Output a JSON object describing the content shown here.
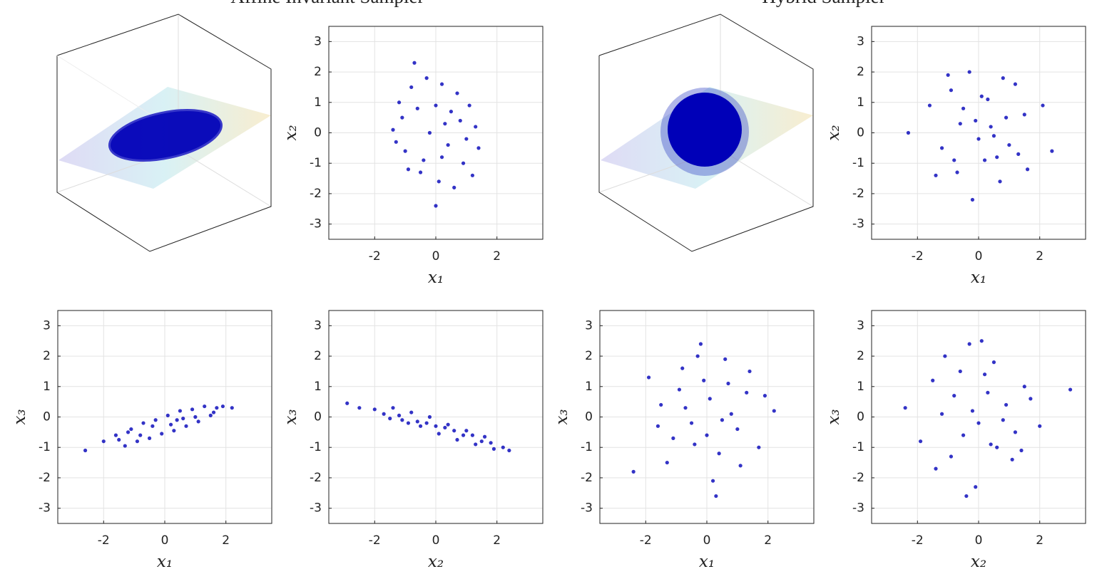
{
  "figure": {
    "titles": [
      "Affine Invariant Sampler",
      "Hybrid Sampler"
    ]
  },
  "chart_data": [
    {
      "type": "scatter",
      "xlabel": "x₁",
      "ylabel": "x₂",
      "color": "#0000b8",
      "grid": true,
      "xlim": [
        -3.5,
        3.5
      ],
      "ylim": [
        -3.5,
        3.5
      ],
      "xticks": [
        -2,
        0,
        2
      ],
      "yticks": [
        -3,
        -2,
        -1,
        0,
        1,
        2,
        3
      ],
      "x": [
        -1.2,
        -0.8,
        -0.3,
        0.2,
        0.7,
        1.1,
        1.3,
        -1.4,
        -0.6,
        0.0,
        0.5,
        1.0,
        -1.0,
        -0.2,
        0.4,
        0.9,
        -0.5,
        0.1,
        0.6,
        -0.9,
        -1.1,
        1.4,
        0.3,
        -0.4,
        0.8,
        -1.3,
        0.0,
        1.2,
        -0.7,
        0.2
      ],
      "y": [
        1.0,
        1.5,
        1.8,
        1.6,
        1.3,
        0.9,
        0.2,
        0.1,
        0.8,
        0.9,
        0.7,
        -0.2,
        -0.6,
        0.0,
        -0.4,
        -1.0,
        -1.3,
        -1.6,
        -1.8,
        -1.2,
        0.5,
        -0.5,
        0.3,
        -0.9,
        0.4,
        -0.3,
        -2.4,
        -1.4,
        2.3,
        -0.8
      ]
    },
    {
      "type": "scatter",
      "xlabel": "x₁",
      "ylabel": "x₂",
      "color": "#0000b8",
      "grid": true,
      "xlim": [
        -3.5,
        3.5
      ],
      "ylim": [
        -3.5,
        3.5
      ],
      "xticks": [
        -2,
        0,
        2
      ],
      "yticks": [
        -3,
        -2,
        -1,
        0,
        1,
        2,
        3
      ],
      "x": [
        -2.3,
        -1.6,
        -1.2,
        -0.9,
        -0.6,
        -0.3,
        0.0,
        0.3,
        0.6,
        0.9,
        1.2,
        1.6,
        2.1,
        -1.4,
        -0.8,
        -0.2,
        0.4,
        1.0,
        1.5,
        -1.0,
        -0.5,
        0.1,
        0.7,
        1.3,
        -0.7,
        0.2,
        0.8,
        -0.1,
        0.5,
        2.4
      ],
      "y": [
        0.0,
        0.9,
        -0.5,
        1.4,
        0.3,
        2.0,
        -0.2,
        1.1,
        -0.8,
        0.5,
        1.6,
        -1.2,
        0.9,
        -1.4,
        -0.9,
        -2.2,
        0.2,
        -0.4,
        0.6,
        1.9,
        0.8,
        1.2,
        -1.6,
        -0.7,
        -1.3,
        -0.9,
        1.8,
        0.4,
        -0.1,
        -0.6
      ]
    },
    {
      "type": "scatter",
      "xlabel": "x₁",
      "ylabel": "x₃",
      "color": "#0000b8",
      "grid": true,
      "xlim": [
        -3.5,
        3.5
      ],
      "ylim": [
        -3.5,
        3.5
      ],
      "xticks": [
        -2,
        0,
        2
      ],
      "yticks": [
        -3,
        -2,
        -1,
        0,
        1,
        2,
        3
      ],
      "x": [
        -2.6,
        -2.0,
        -1.6,
        -1.3,
        -1.1,
        -0.9,
        -0.7,
        -0.5,
        -0.3,
        -0.1,
        0.1,
        0.3,
        0.5,
        0.7,
        0.9,
        1.1,
        1.3,
        1.5,
        1.7,
        1.9,
        2.2,
        -1.2,
        -0.4,
        0.4,
        1.0,
        -0.8,
        0.2,
        1.6,
        -1.5,
        0.6
      ],
      "y": [
        -1.1,
        -0.8,
        -0.6,
        -0.95,
        -0.4,
        -0.8,
        -0.2,
        -0.7,
        -0.1,
        -0.55,
        0.05,
        -0.45,
        0.2,
        -0.3,
        0.25,
        -0.15,
        0.35,
        0.05,
        0.3,
        0.35,
        0.3,
        -0.5,
        -0.3,
        -0.1,
        0.0,
        -0.6,
        -0.25,
        0.15,
        -0.75,
        -0.05
      ]
    },
    {
      "type": "scatter",
      "xlabel": "x₂",
      "ylabel": "x₃",
      "color": "#0000b8",
      "grid": true,
      "xlim": [
        -3.5,
        3.5
      ],
      "ylim": [
        -3.5,
        3.5
      ],
      "xticks": [
        -2,
        0,
        2
      ],
      "yticks": [
        -3,
        -2,
        -1,
        0,
        1,
        2,
        3
      ],
      "x": [
        -2.9,
        -2.5,
        -2.0,
        -1.7,
        -1.4,
        -1.1,
        -0.8,
        -0.5,
        -0.2,
        0.1,
        0.4,
        0.7,
        1.0,
        1.3,
        1.6,
        1.9,
        2.4,
        -1.5,
        -0.9,
        -0.3,
        0.3,
        0.9,
        1.5,
        -1.2,
        -0.6,
        0.0,
        0.6,
        1.2,
        1.8,
        2.2
      ],
      "y": [
        0.45,
        0.3,
        0.25,
        0.1,
        0.3,
        -0.1,
        0.15,
        -0.3,
        0.0,
        -0.55,
        -0.25,
        -0.75,
        -0.45,
        -0.9,
        -0.65,
        -1.05,
        -1.1,
        -0.05,
        -0.2,
        -0.2,
        -0.35,
        -0.6,
        -0.8,
        0.05,
        -0.15,
        -0.3,
        -0.45,
        -0.6,
        -0.85,
        -1.0
      ]
    },
    {
      "type": "scatter",
      "xlabel": "x₁",
      "ylabel": "x₃",
      "color": "#0000b8",
      "grid": true,
      "xlim": [
        -3.5,
        3.5
      ],
      "ylim": [
        -3.5,
        3.5
      ],
      "xticks": [
        -2,
        0,
        2
      ],
      "yticks": [
        -3,
        -2,
        -1,
        0,
        1,
        2,
        3
      ],
      "x": [
        -2.4,
        -1.9,
        -1.5,
        -1.1,
        -0.8,
        -0.5,
        -0.2,
        0.1,
        0.4,
        0.7,
        1.0,
        1.3,
        1.7,
        2.2,
        -1.3,
        -0.9,
        -0.4,
        0.2,
        0.8,
        1.4,
        -0.7,
        0.0,
        0.6,
        1.1,
        -0.1,
        0.5,
        -1.6,
        0.3,
        1.9,
        -0.3
      ],
      "y": [
        -1.8,
        1.3,
        0.4,
        -0.7,
        1.6,
        -0.2,
        2.4,
        0.6,
        -1.2,
        1.1,
        -0.4,
        0.8,
        -1.0,
        0.2,
        -1.5,
        0.9,
        -0.9,
        -2.1,
        0.1,
        1.5,
        0.3,
        -0.6,
        1.9,
        -1.6,
        1.2,
        -0.1,
        -0.3,
        -2.6,
        0.7,
        2.0
      ]
    },
    {
      "type": "scatter",
      "xlabel": "x₂",
      "ylabel": "x₃",
      "color": "#0000b8",
      "grid": true,
      "xlim": [
        -3.5,
        3.5
      ],
      "ylim": [
        -3.5,
        3.5
      ],
      "xticks": [
        -2,
        0,
        2
      ],
      "yticks": [
        -3,
        -2,
        -1,
        0,
        1,
        2,
        3
      ],
      "x": [
        -2.4,
        -1.9,
        -1.5,
        -1.2,
        -0.9,
        -0.6,
        -0.3,
        0.0,
        0.3,
        0.6,
        0.9,
        1.2,
        1.5,
        2.0,
        -1.4,
        -0.8,
        -0.1,
        0.5,
        1.1,
        1.7,
        -0.5,
        0.2,
        0.8,
        -1.1,
        0.4,
        -0.2,
        1.4,
        3.0,
        -0.4,
        0.1
      ],
      "y": [
        0.3,
        -0.8,
        1.2,
        0.1,
        -1.3,
        1.5,
        2.4,
        -0.2,
        0.8,
        -1.0,
        0.4,
        -0.5,
        1.0,
        -0.3,
        -1.7,
        0.7,
        -2.3,
        1.8,
        -1.4,
        0.6,
        -0.6,
        1.4,
        -0.1,
        2.0,
        -0.9,
        0.2,
        -1.1,
        0.9,
        -2.6,
        2.5
      ]
    }
  ]
}
